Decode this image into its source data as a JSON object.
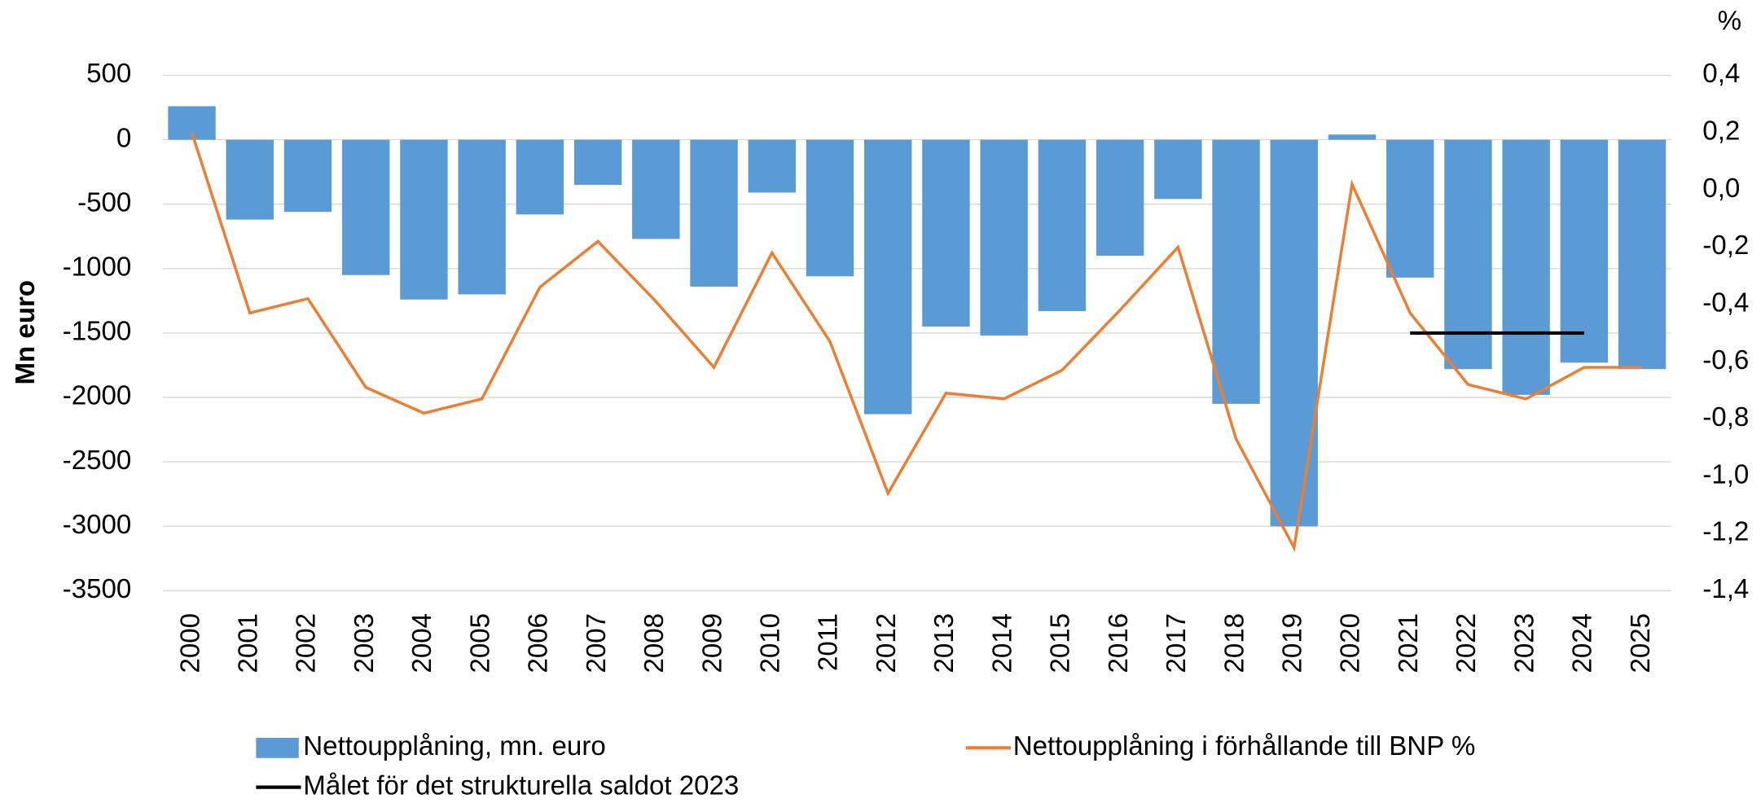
{
  "chart_data": {
    "type": "bar",
    "y_label": "Mn euro",
    "y2_label": "%",
    "categories": [
      "2000",
      "2001",
      "2002",
      "2003",
      "2004",
      "2005",
      "2006",
      "2007",
      "2008",
      "2009",
      "2010",
      "2011",
      "2012",
      "2013",
      "2014",
      "2015",
      "2016",
      "2017",
      "2018",
      "2019",
      "2020",
      "2021",
      "2022",
      "2023",
      "2024",
      "2025"
    ],
    "series": [
      {
        "name": "Nettoupplåning, mn. euro",
        "type": "bar",
        "color": "#5b9bd5",
        "values": [
          260,
          -620,
          -560,
          -1050,
          -1240,
          -1200,
          -580,
          -350,
          -770,
          -1140,
          -410,
          -1060,
          -2130,
          -1450,
          -1520,
          -1330,
          -900,
          -460,
          -2050,
          -3000,
          40,
          -1070,
          -1780,
          -1980,
          -1730,
          -1780
        ]
      },
      {
        "name": "Nettoupplåning i förhållande till BNP %",
        "type": "line",
        "axis": "y2",
        "color": "#ed7d31",
        "values": [
          0.2,
          -0.43,
          -0.38,
          -0.69,
          -0.78,
          -0.73,
          -0.34,
          -0.18,
          -0.39,
          -0.62,
          -0.22,
          -0.53,
          -1.06,
          -0.71,
          -0.73,
          -0.63,
          -0.42,
          -0.2,
          -0.87,
          -1.25,
          0.02,
          -0.43,
          -0.68,
          -0.73,
          -0.62,
          -0.62
        ]
      },
      {
        "name": "Målet för det strukturella saldot 2023",
        "type": "line",
        "axis": "y2",
        "color": "#000000",
        "values": [
          null,
          null,
          null,
          null,
          null,
          null,
          null,
          null,
          null,
          null,
          null,
          null,
          null,
          null,
          null,
          null,
          null,
          null,
          null,
          null,
          null,
          -0.5,
          -0.5,
          -0.5,
          -0.5,
          null
        ]
      }
    ],
    "ylim": [
      -3500,
      500
    ],
    "yticks": [
      500,
      0,
      -500,
      -1000,
      -1500,
      -2000,
      -2500,
      -3000,
      -3500
    ],
    "y2lim": [
      -1.4,
      0.4
    ],
    "y2ticks": [
      {
        "value": 0.4,
        "label": "0,4"
      },
      {
        "value": 0.2,
        "label": "0,2"
      },
      {
        "value": 0,
        "label": "0,0"
      },
      {
        "value": -0.2,
        "label": "-0,2"
      },
      {
        "value": -0.4,
        "label": "-0,4"
      },
      {
        "value": -0.6,
        "label": "-0,6"
      },
      {
        "value": -0.8,
        "label": "-0,8"
      },
      {
        "value": -1,
        "label": "-1,0"
      },
      {
        "value": -1.2,
        "label": "-1,2"
      },
      {
        "value": -1.4,
        "label": "-1,4"
      }
    ],
    "grid": true
  }
}
